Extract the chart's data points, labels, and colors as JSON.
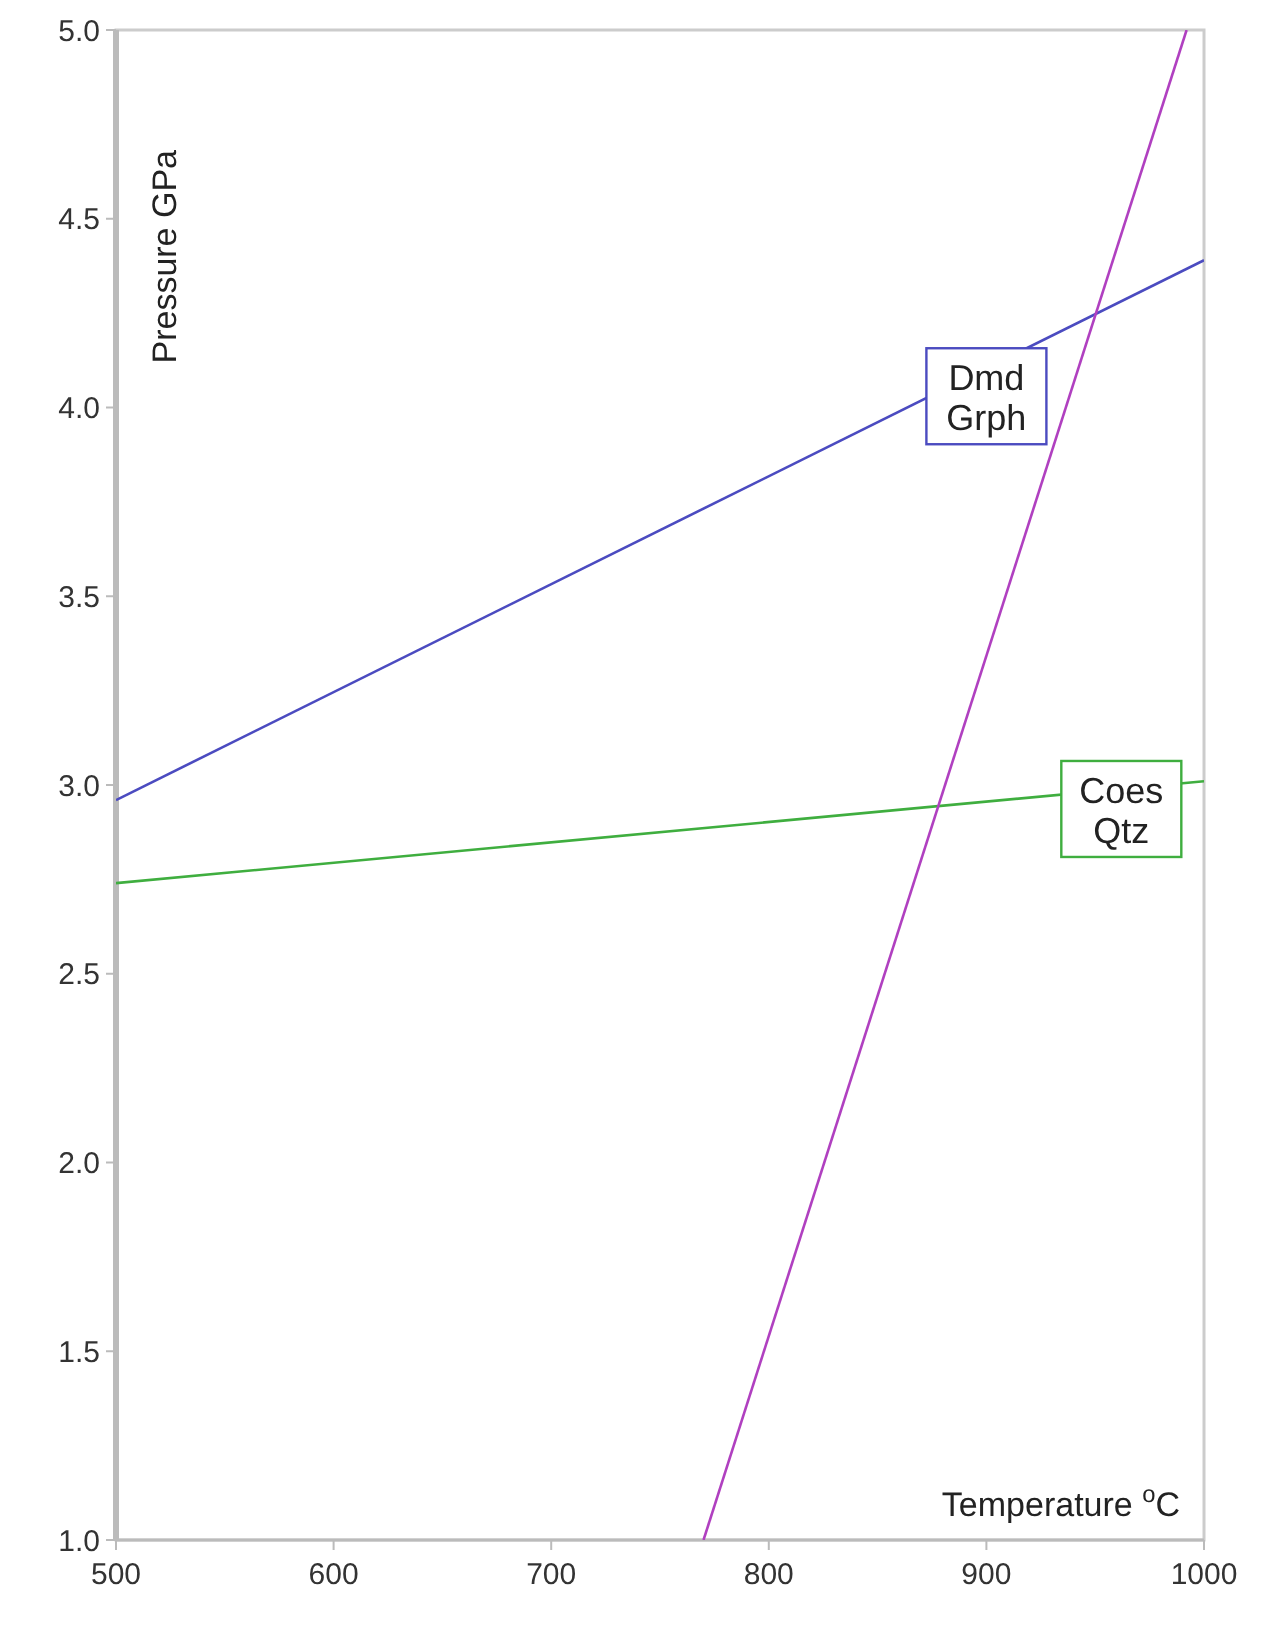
{
  "chart_data": {
    "type": "line",
    "xlabel": "Temperature $^{o}$C",
    "ylabel": "Pressure GPa",
    "xlim": [
      500,
      1000
    ],
    "ylim": [
      1.0,
      5.0
    ],
    "xticks": [
      500,
      600,
      700,
      800,
      900,
      1000
    ],
    "yticks": [
      {
        "value": 1,
        "label": "1.0"
      },
      {
        "value": 1.5,
        "label": "1.5"
      },
      {
        "value": 2,
        "label": "2.0"
      },
      {
        "value": 2.5,
        "label": "2.5"
      },
      {
        "value": 3,
        "label": "3.0"
      },
      {
        "value": 3.5,
        "label": "3.5"
      },
      {
        "value": 4,
        "label": "4.0"
      },
      {
        "value": 4.5,
        "label": "4.5"
      },
      {
        "value": 5,
        "label": "5.0"
      }
    ],
    "grid": false,
    "marker": "none",
    "line_style": "solid",
    "series": [
      {
        "color": "#4b4bc0",
        "x": [
          500,
          1000
        ],
        "values": [
          2.96,
          4.39
        ]
      },
      {
        "color": "#3fae3f",
        "x": [
          500,
          1000
        ],
        "values": [
          2.74,
          3.01
        ]
      },
      {
        "color": "#b040c0",
        "x": [
          770,
          992
        ],
        "values": [
          1.0,
          5.0
        ]
      }
    ],
    "annotations": [
      "Dmd\nGrph",
      "Coes\nQtz"
    ]
  }
}
